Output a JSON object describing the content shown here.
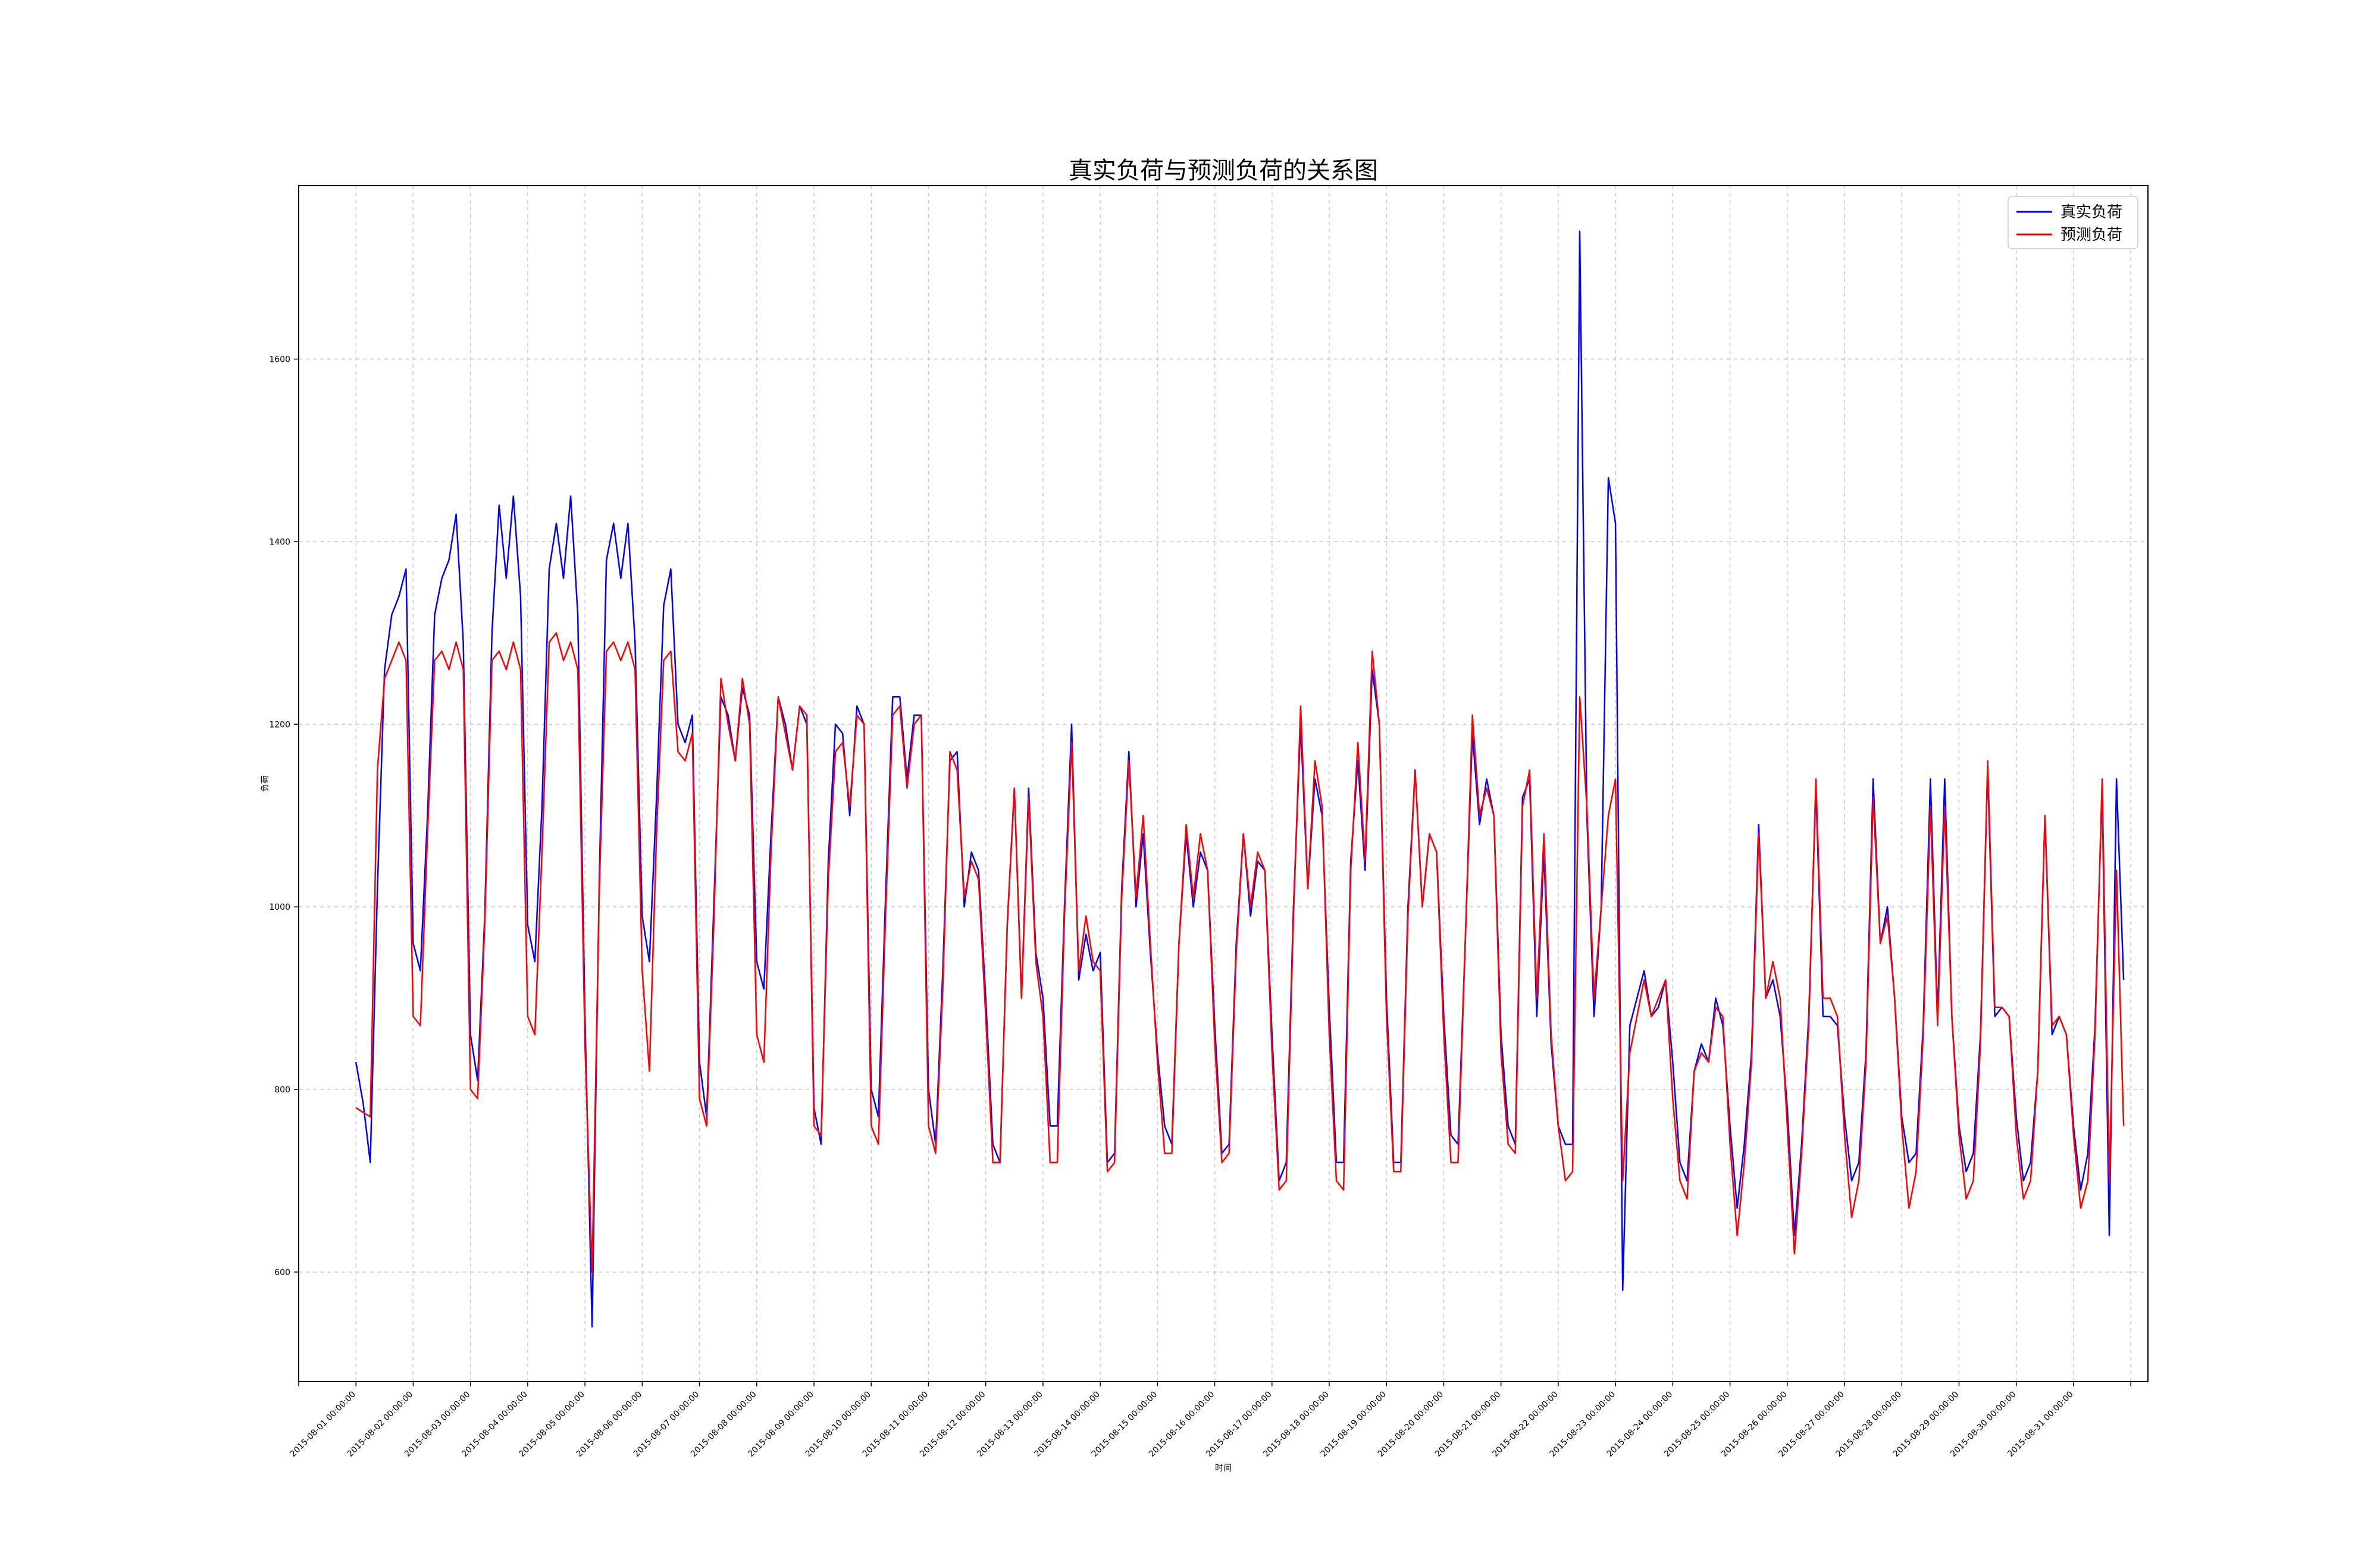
{
  "chart_data": {
    "type": "line",
    "title": "真实负荷与预测负荷的关系图",
    "xlabel": "时间",
    "ylabel": "负荷",
    "x_ticks": [
      "2015-08-01 00:00:00",
      "2015-08-02 00:00:00",
      "2015-08-03 00:00:00",
      "2015-08-04 00:00:00",
      "2015-08-05 00:00:00",
      "2015-08-06 00:00:00",
      "2015-08-07 00:00:00",
      "2015-08-08 00:00:00",
      "2015-08-09 00:00:00",
      "2015-08-10 00:00:00",
      "2015-08-11 00:00:00",
      "2015-08-12 00:00:00",
      "2015-08-13 00:00:00",
      "2015-08-14 00:00:00",
      "2015-08-15 00:00:00",
      "2015-08-16 00:00:00",
      "2015-08-17 00:00:00",
      "2015-08-18 00:00:00",
      "2015-08-19 00:00:00",
      "2015-08-20 00:00:00",
      "2015-08-21 00:00:00",
      "2015-08-22 00:00:00",
      "2015-08-23 00:00:00",
      "2015-08-24 00:00:00",
      "2015-08-25 00:00:00",
      "2015-08-26 00:00:00",
      "2015-08-27 00:00:00",
      "2015-08-28 00:00:00",
      "2015-08-29 00:00:00",
      "2015-08-30 00:00:00",
      "2015-08-31 00:00:00"
    ],
    "y_ticks": [
      600,
      800,
      1000,
      1200,
      1400,
      1600
    ],
    "x_range_days": [
      -1,
      31.3
    ],
    "ylim": [
      480,
      1790
    ],
    "grid": true,
    "legend_position": "top-right",
    "sample_step_hours": 3,
    "series": [
      {
        "name": "真实负荷",
        "color": "#0000ff",
        "values": [
          830,
          785,
          720,
          1020,
          1260,
          1320,
          1340,
          1370,
          960,
          930,
          1100,
          1320,
          1360,
          1380,
          1430,
          1290,
          860,
          810,
          990,
          1300,
          1440,
          1360,
          1450,
          1340,
          980,
          940,
          1110,
          1370,
          1420,
          1360,
          1450,
          1320,
          880,
          540,
          1030,
          1380,
          1420,
          1360,
          1420,
          1290,
          990,
          940,
          1120,
          1330,
          1370,
          1200,
          1180,
          1210,
          830,
          770,
          1000,
          1230,
          1210,
          1160,
          1240,
          1210,
          940,
          910,
          1080,
          1230,
          1200,
          1150,
          1220,
          1200,
          780,
          740,
          1050,
          1200,
          1190,
          1100,
          1220,
          1200,
          800,
          770,
          1010,
          1230,
          1230,
          1140,
          1210,
          1210,
          800,
          740,
          930,
          1160,
          1170,
          1000,
          1060,
          1040,
          900,
          740,
          720,
          980,
          1130,
          900,
          1130,
          950,
          900,
          760,
          760,
          1000,
          1200,
          920,
          970,
          930,
          950,
          720,
          730,
          1020,
          1170,
          1000,
          1080,
          950,
          840,
          760,
          740,
          960,
          1080,
          1000,
          1060,
          1040,
          870,
          730,
          740,
          960,
          1080,
          990,
          1050,
          1040,
          860,
          700,
          720,
          1000,
          1200,
          1020,
          1140,
          1100,
          890,
          720,
          720,
          1050,
          1160,
          1040,
          1260,
          1200,
          900,
          720,
          720,
          1000,
          1150,
          1000,
          1080,
          1060,
          880,
          750,
          740,
          960,
          1190,
          1090,
          1140,
          1100,
          860,
          760,
          740,
          1120,
          1140,
          880,
          1060,
          850,
          760,
          740,
          740,
          1740,
          1100,
          880,
          1000,
          1470,
          1420,
          580,
          870,
          900,
          930,
          880,
          890,
          920,
          830,
          720,
          700,
          820,
          850,
          830,
          900,
          870,
          760,
          670,
          740,
          840,
          1090,
          900,
          920,
          880,
          780,
          640,
          740,
          880,
          1130,
          880,
          880,
          870,
          770,
          700,
          720,
          840,
          1140,
          960,
          1000,
          900,
          770,
          720,
          730,
          870,
          1140,
          880,
          1140,
          880,
          760,
          710,
          730,
          860,
          1150,
          880,
          890,
          880,
          770,
          700,
          720,
          820,
          1100,
          860,
          880,
          860,
          760,
          690,
          730,
          870,
          1130,
          640,
          1140,
          920
        ]
      },
      {
        "name": "预测负荷",
        "color": "#ff0000",
        "values": [
          780,
          775,
          770,
          1150,
          1250,
          1270,
          1290,
          1270,
          880,
          870,
          1080,
          1270,
          1280,
          1260,
          1290,
          1260,
          800,
          790,
          980,
          1270,
          1280,
          1260,
          1290,
          1260,
          880,
          860,
          1060,
          1290,
          1300,
          1270,
          1290,
          1260,
          850,
          600,
          1020,
          1280,
          1290,
          1270,
          1290,
          1260,
          930,
          820,
          1080,
          1270,
          1280,
          1170,
          1160,
          1190,
          790,
          760,
          980,
          1250,
          1200,
          1160,
          1250,
          1200,
          860,
          830,
          1060,
          1230,
          1190,
          1150,
          1220,
          1210,
          760,
          750,
          1030,
          1170,
          1180,
          1110,
          1210,
          1200,
          760,
          740,
          990,
          1210,
          1220,
          1130,
          1200,
          1210,
          760,
          730,
          910,
          1170,
          1150,
          1010,
          1050,
          1030,
          880,
          720,
          720,
          980,
          1130,
          900,
          1120,
          940,
          880,
          720,
          720,
          990,
          1180,
          930,
          990,
          940,
          930,
          710,
          720,
          1010,
          1160,
          1010,
          1100,
          960,
          830,
          730,
          730,
          960,
          1090,
          1010,
          1080,
          1040,
          850,
          720,
          730,
          950,
          1080,
          1000,
          1060,
          1040,
          840,
          690,
          700,
          990,
          1220,
          1020,
          1160,
          1110,
          860,
          700,
          690,
          1040,
          1180,
          1050,
          1280,
          1200,
          880,
          710,
          710,
          990,
          1150,
          1000,
          1080,
          1060,
          860,
          720,
          720,
          960,
          1210,
          1100,
          1130,
          1100,
          840,
          740,
          730,
          1110,
          1150,
          900,
          1080,
          860,
          760,
          700,
          710,
          1230,
          1110,
          900,
          1000,
          1100,
          1140,
          700,
          840,
          880,
          920,
          880,
          900,
          920,
          790,
          700,
          680,
          820,
          840,
          830,
          890,
          880,
          740,
          640,
          720,
          830,
          1080,
          900,
          940,
          900,
          760,
          620,
          730,
          870,
          1140,
          900,
          900,
          880,
          750,
          660,
          700,
          830,
          1120,
          960,
          990,
          900,
          760,
          670,
          710,
          860,
          1110,
          870,
          1110,
          880,
          750,
          680,
          700,
          850,
          1160,
          890,
          890,
          880,
          750,
          680,
          700,
          820,
          1100,
          870,
          880,
          860,
          750,
          670,
          700,
          860,
          1140,
          700,
          1040,
          760
        ]
      }
    ]
  }
}
